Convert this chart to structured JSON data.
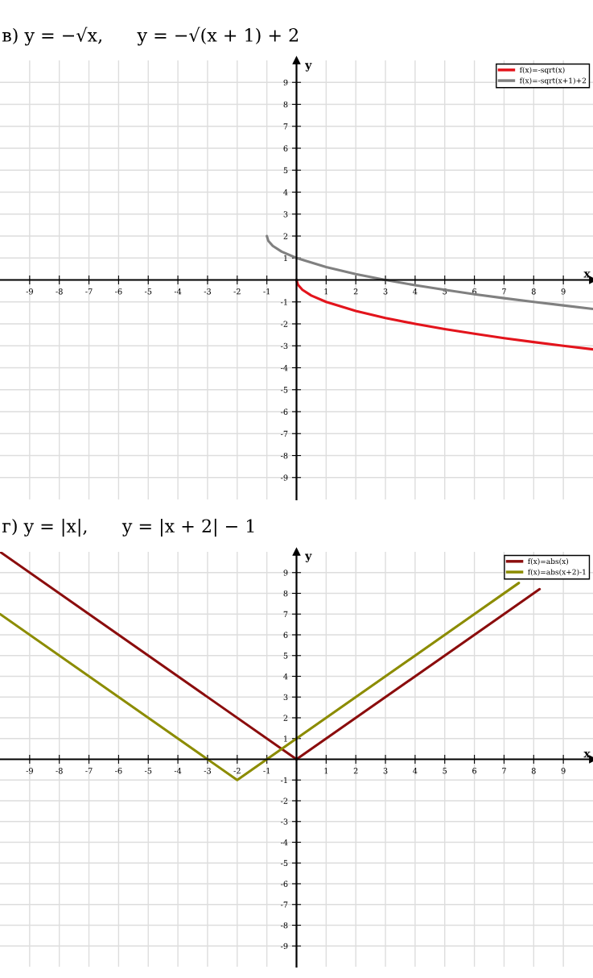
{
  "chart_data": [
    {
      "type": "line",
      "title": "в) y = −√x,      y = −√(x + 1) + 2",
      "xlabel": "x",
      "ylabel": "y",
      "xlim": [
        -10,
        10
      ],
      "ylim": [
        -10,
        10
      ],
      "xticks": [
        -9,
        -8,
        -7,
        -6,
        -5,
        -4,
        -3,
        -2,
        -1,
        1,
        2,
        3,
        4,
        5,
        6,
        7,
        8,
        9
      ],
      "yticks": [
        -9,
        -8,
        -7,
        -6,
        -5,
        -4,
        -3,
        -2,
        -1,
        1,
        2,
        3,
        4,
        5,
        6,
        7,
        8,
        9
      ],
      "grid": true,
      "legend": "top right",
      "marker": "none",
      "line_style": "solid",
      "series": [
        {
          "name": "f(x)=-sqrt(x)",
          "color": "#e3141c",
          "x": [
            0,
            0.05,
            0.2,
            0.5,
            1,
            2,
            3,
            4,
            5,
            6,
            7,
            8,
            9,
            10
          ],
          "values": [
            0,
            -0.22,
            -0.45,
            -0.71,
            -1,
            -1.41,
            -1.73,
            -2,
            -2.24,
            -2.45,
            -2.65,
            -2.83,
            -3,
            -3.16
          ]
        },
        {
          "name": "f(x)=-sqrt(x+1)+2",
          "color": "#808080",
          "x": [
            -1,
            -0.95,
            -0.8,
            -0.5,
            0,
            1,
            2,
            3,
            4,
            5,
            6,
            7,
            8,
            9,
            10
          ],
          "values": [
            2,
            1.78,
            1.55,
            1.29,
            1,
            0.59,
            0.27,
            0,
            -0.24,
            -0.45,
            -0.65,
            -0.83,
            -1,
            -1.16,
            -1.32
          ]
        }
      ]
    },
    {
      "type": "line",
      "title": "г) y = |x|,      y = |x + 2| − 1",
      "xlabel": "x",
      "ylabel": "y",
      "xlim": [
        -10,
        10
      ],
      "ylim": [
        -10,
        10
      ],
      "xticks": [
        -9,
        -8,
        -7,
        -6,
        -5,
        -4,
        -3,
        -2,
        -1,
        1,
        2,
        3,
        4,
        5,
        6,
        7,
        8,
        9
      ],
      "yticks": [
        -9,
        -8,
        -7,
        -6,
        -5,
        -4,
        -3,
        -2,
        -1,
        1,
        2,
        3,
        4,
        5,
        6,
        7,
        8,
        9
      ],
      "grid": true,
      "legend": "top right",
      "marker": "none",
      "line_style": "solid",
      "series": [
        {
          "name": "f(x)=abs(x)",
          "color": "#8b0d0d",
          "x": [
            -10,
            0,
            8.2
          ],
          "values": [
            10,
            0,
            8.2
          ]
        },
        {
          "name": "f(x)=abs(x+2)-1",
          "color": "#8c8c00",
          "x": [
            -10,
            -2,
            7.5
          ],
          "values": [
            7,
            -1,
            8.5
          ]
        }
      ]
    }
  ]
}
